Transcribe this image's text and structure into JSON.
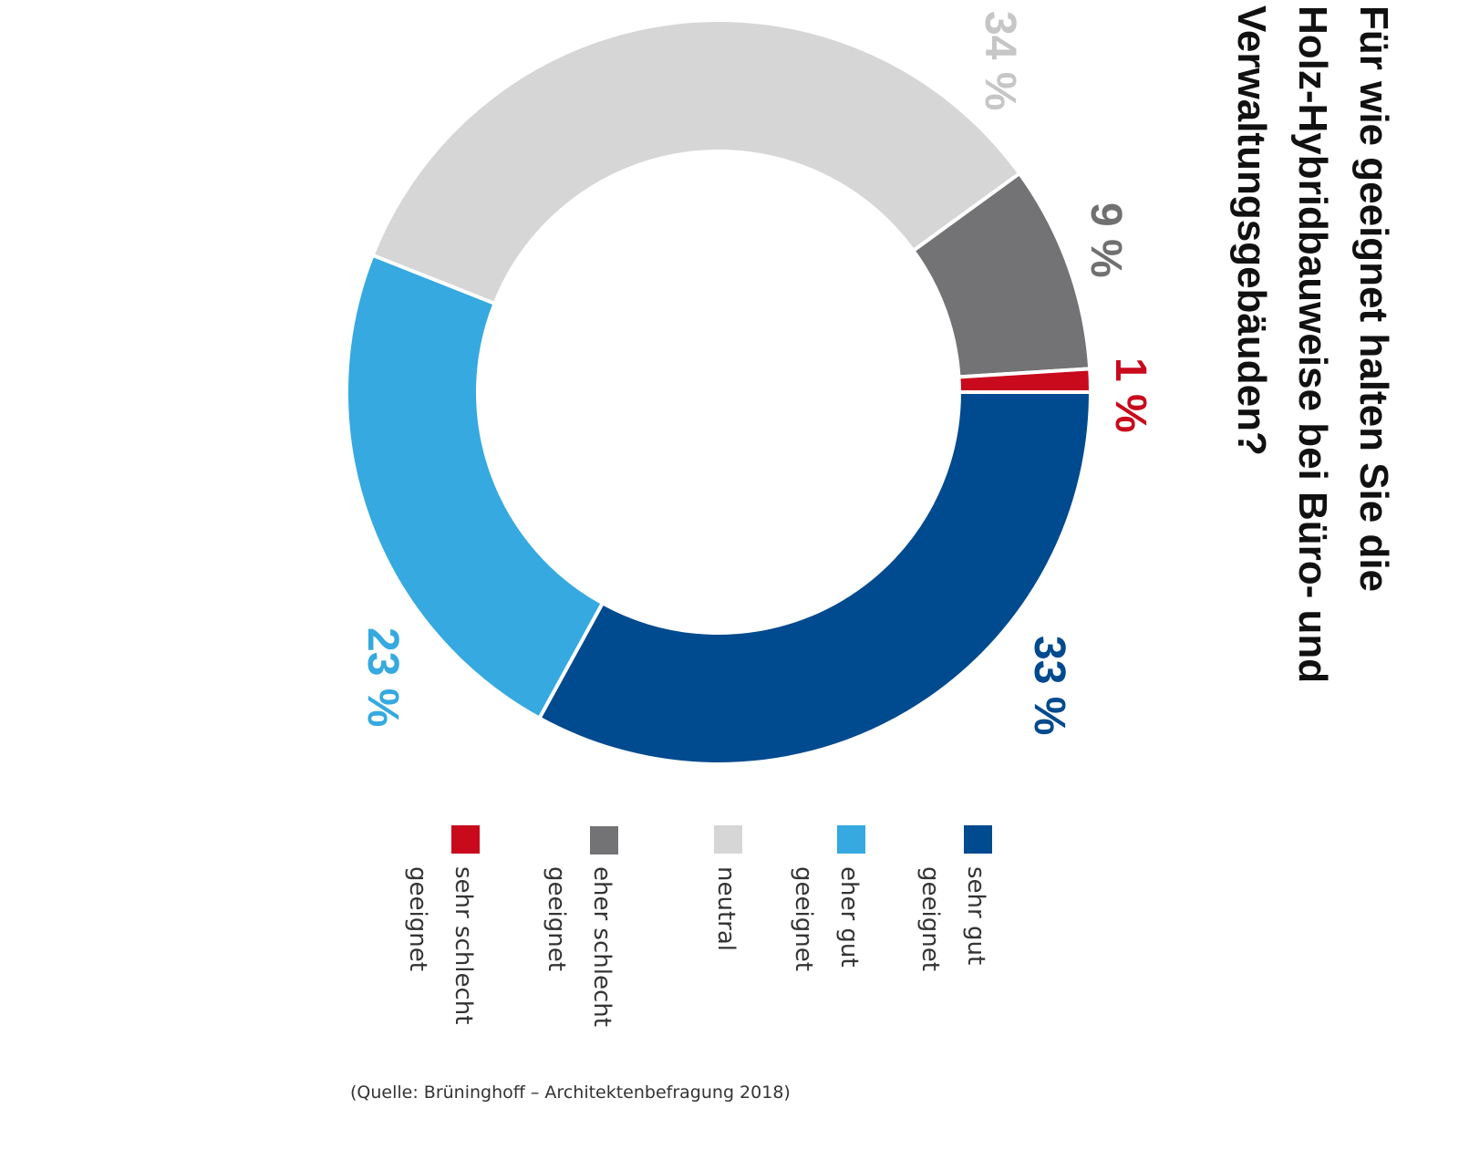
{
  "chart_data": {
    "type": "pie",
    "variant": "donut",
    "orientation": "rotated 90 degrees clockwise",
    "title_lines": [
      "Für wie geeignet halten Sie die",
      "Holz-Hybridbauweise bei Büro- und",
      "Verwaltungsgebäuden?"
    ],
    "unit": "%",
    "slices": [
      {
        "label": "sehr gut geeignet",
        "legend_lines": [
          "sehr gut",
          "geeignet"
        ],
        "value": 33,
        "value_label": "33 %",
        "color": "#004a8f",
        "label_color": "#004a8f"
      },
      {
        "label": "eher gut geeignet",
        "legend_lines": [
          "eher gut",
          "geeignet"
        ],
        "value": 23,
        "value_label": "23 %",
        "color": "#35a9e0",
        "label_color": "#35a9e0"
      },
      {
        "label": "neutral",
        "legend_lines": [
          "neutral"
        ],
        "value": 34,
        "value_label": "34 %",
        "color": "#d6d6d6",
        "label_color": "#c6c6c6"
      },
      {
        "label": "eher schlecht geeignet",
        "legend_lines": [
          "eher schlecht",
          "geeignet"
        ],
        "value": 9,
        "value_label": "9 %",
        "color": "#737375",
        "label_color": "#707070"
      },
      {
        "label": "sehr schlecht geeignet",
        "legend_lines": [
          "sehr schlecht",
          "geeignet"
        ],
        "value": 1,
        "value_label": "1 %",
        "color": "#c90a1c",
        "label_color": "#c90a1c"
      }
    ],
    "legend_order": [
      4,
      3,
      2,
      1,
      0
    ],
    "source": "(Quelle: Brüninghoff – Architektenbefragung 2018)"
  }
}
